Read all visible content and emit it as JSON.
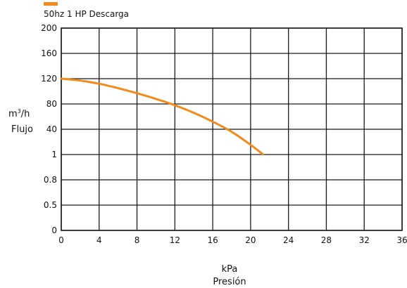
{
  "chart_data": {
    "type": "line",
    "legend": {
      "position": "top-left",
      "label": "50hz  1 HP Descarga"
    },
    "xlabel_unit": "kPa",
    "xlabel": "Presión",
    "ylabel_unit_base": "m",
    "ylabel_unit_sup": "3",
    "ylabel_unit_tail": "/h",
    "ylabel": "Flujo",
    "x_ticks": [
      "0",
      "4",
      "8",
      "12",
      "16",
      "20",
      "24",
      "28",
      "32",
      "36"
    ],
    "y_ticks": [
      "0",
      "0.5",
      "0.8",
      "1",
      "40",
      "80",
      "120",
      "160",
      "200"
    ],
    "xlim": [
      0,
      36
    ],
    "grid": true,
    "series": [
      {
        "name": "50hz  1 HP Descarga",
        "color": "#f08a1c",
        "x": [
          0,
          2,
          4,
          6,
          8,
          10,
          12,
          14,
          16,
          18,
          20,
          21.3
        ],
        "y": [
          120,
          117,
          112,
          105,
          97,
          88,
          78,
          66,
          52,
          36,
          16,
          1.3
        ]
      }
    ]
  }
}
